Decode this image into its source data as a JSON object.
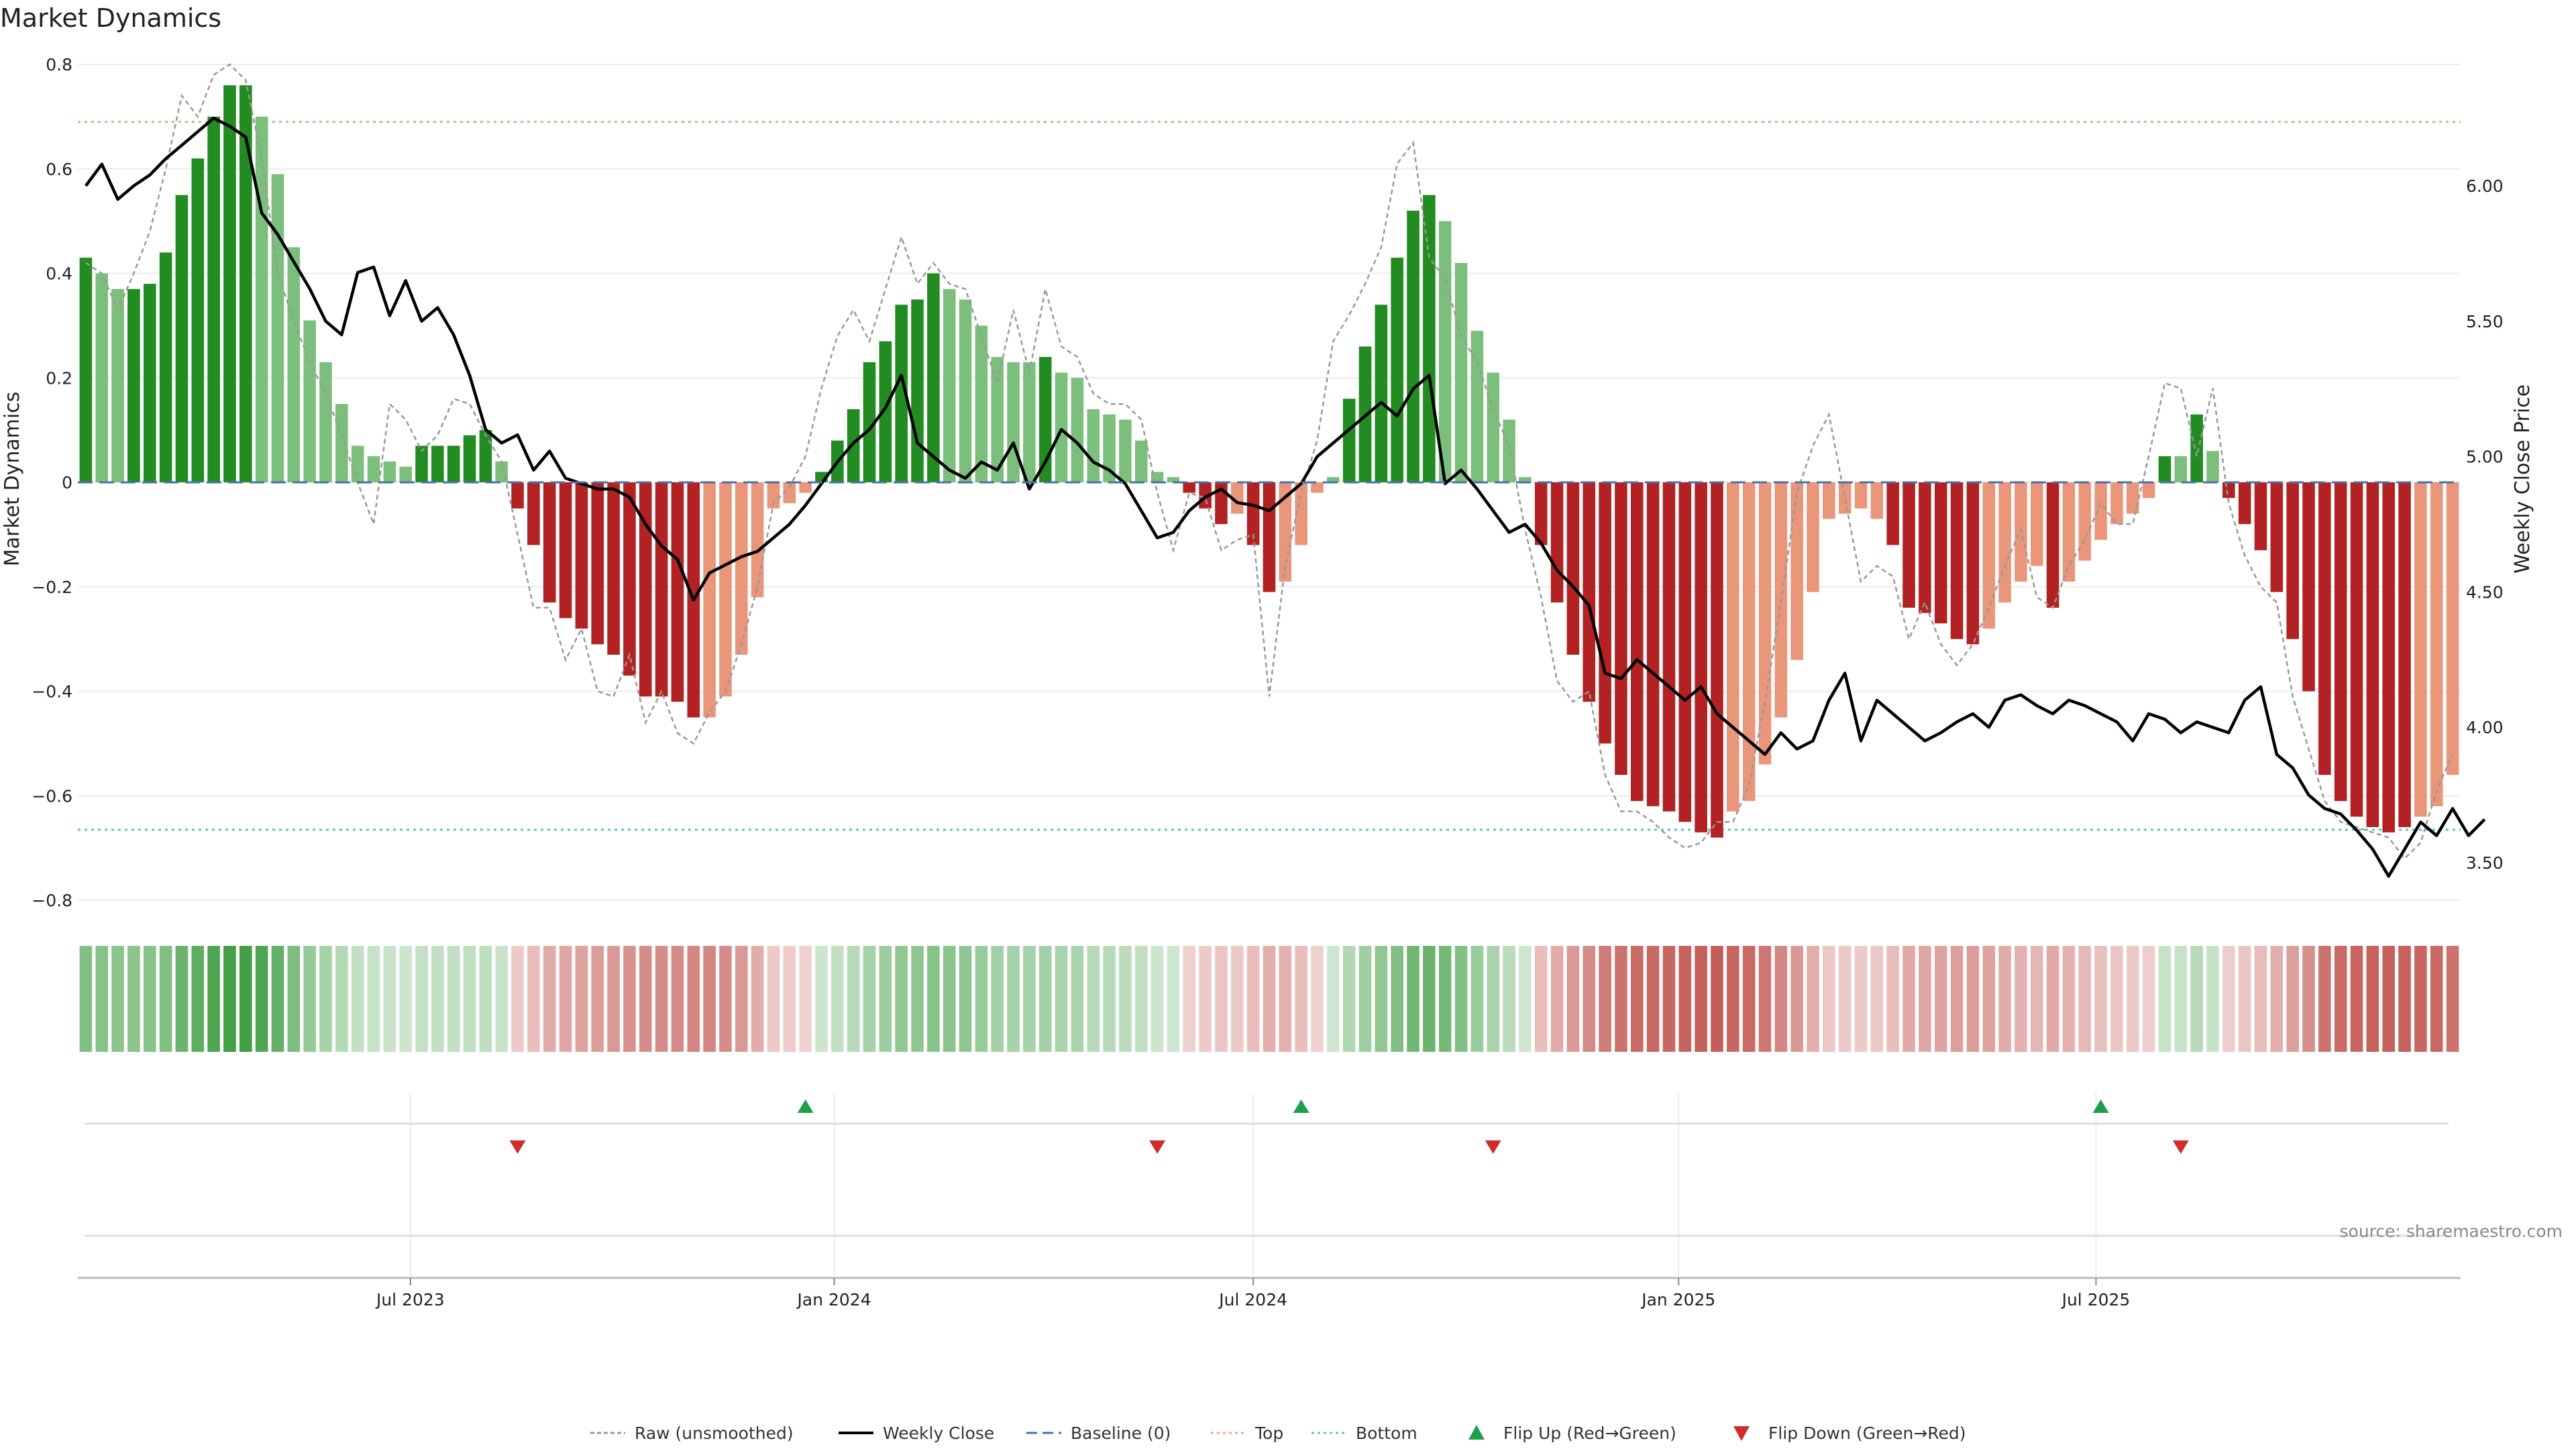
{
  "chart_data": {
    "type": "bar",
    "title": "Market Dynamics",
    "ylabel": "Market Dynamics",
    "y2label": "Weekly Close Price",
    "ylim": [
      -0.8,
      0.8
    ],
    "y2lim": [
      3.42,
      6.4
    ],
    "yticks": [
      "0.8",
      "0.6",
      "0.4",
      "0.2",
      "0",
      "−0.2",
      "−0.4",
      "−0.6",
      "−0.8"
    ],
    "y2ticks": [
      "6.00",
      "5.50",
      "5.00",
      "4.50",
      "4.00",
      "3.50"
    ],
    "xticks": [
      "Jul 2023",
      "Jan 2024",
      "Jul 2024",
      "Jan 2025",
      "Jul 2025"
    ],
    "grid": true,
    "legend_position": "bottom",
    "source": "source: sharemaestro.com",
    "top_line": 0.69,
    "bottom_line": -0.665,
    "baseline": 0,
    "colors": {
      "strong_green": "#228b22",
      "light_green": "#7cbf7c",
      "strong_red": "#b22222",
      "light_red": "#e9967a",
      "close": "#000000",
      "raw": "#999999",
      "baseline": "#4a6fa5",
      "top": "#e8a98a",
      "bottom": "#5ec4c4",
      "flip_up": "#1e9e4a",
      "flip_down": "#d22b2b"
    },
    "bars": [
      0.43,
      0.4,
      0.37,
      0.37,
      0.38,
      0.44,
      0.55,
      0.62,
      0.7,
      0.76,
      0.76,
      0.7,
      0.59,
      0.45,
      0.31,
      0.23,
      0.15,
      0.07,
      0.05,
      0.04,
      0.03,
      0.07,
      0.07,
      0.07,
      0.09,
      0.1,
      0.04,
      -0.05,
      -0.12,
      -0.23,
      -0.26,
      -0.28,
      -0.31,
      -0.33,
      -0.37,
      -0.41,
      -0.41,
      -0.42,
      -0.45,
      -0.45,
      -0.41,
      -0.33,
      -0.22,
      -0.05,
      -0.04,
      -0.02,
      0.02,
      0.08,
      0.14,
      0.23,
      0.27,
      0.34,
      0.35,
      0.4,
      0.37,
      0.35,
      0.3,
      0.24,
      0.23,
      0.23,
      0.24,
      0.21,
      0.2,
      0.14,
      0.13,
      0.12,
      0.08,
      0.02,
      0.01,
      -0.02,
      -0.05,
      -0.08,
      -0.06,
      -0.12,
      -0.21,
      -0.19,
      -0.12,
      -0.02,
      0.01,
      0.16,
      0.26,
      0.34,
      0.43,
      0.52,
      0.55,
      0.5,
      0.42,
      0.29,
      0.21,
      0.12,
      0.01,
      -0.12,
      -0.23,
      -0.33,
      -0.42,
      -0.5,
      -0.56,
      -0.61,
      -0.62,
      -0.63,
      -0.65,
      -0.67,
      -0.68,
      -0.63,
      -0.61,
      -0.54,
      -0.45,
      -0.34,
      -0.21,
      -0.07,
      -0.06,
      -0.05,
      -0.07,
      -0.12,
      -0.24,
      -0.25,
      -0.27,
      -0.3,
      -0.31,
      -0.28,
      -0.23,
      -0.19,
      -0.16,
      -0.24,
      -0.19,
      -0.15,
      -0.11,
      -0.08,
      -0.06,
      -0.03,
      0.05,
      0.05,
      0.13,
      0.06,
      -0.03,
      -0.08,
      -0.13,
      -0.21,
      -0.3,
      -0.4,
      -0.56,
      -0.61,
      -0.64,
      -0.66,
      -0.67,
      -0.66,
      -0.64,
      -0.62,
      -0.56
    ],
    "bar_shade": [
      "s",
      "l",
      "l",
      "s",
      "s",
      "s",
      "s",
      "s",
      "s",
      "s",
      "s",
      "l",
      "l",
      "l",
      "l",
      "l",
      "l",
      "l",
      "l",
      "l",
      "l",
      "s",
      "s",
      "s",
      "s",
      "s",
      "l",
      "s",
      "s",
      "s",
      "s",
      "s",
      "s",
      "s",
      "s",
      "s",
      "s",
      "s",
      "s",
      "l",
      "l",
      "l",
      "l",
      "l",
      "l",
      "l",
      "s",
      "s",
      "s",
      "s",
      "s",
      "s",
      "s",
      "s",
      "l",
      "l",
      "l",
      "l",
      "l",
      "l",
      "s",
      "l",
      "l",
      "l",
      "l",
      "l",
      "l",
      "l",
      "l",
      "s",
      "s",
      "s",
      "l",
      "s",
      "s",
      "l",
      "l",
      "l",
      "l",
      "s",
      "s",
      "s",
      "s",
      "s",
      "s",
      "l",
      "l",
      "l",
      "l",
      "l",
      "l",
      "s",
      "s",
      "s",
      "s",
      "s",
      "s",
      "s",
      "s",
      "s",
      "s",
      "s",
      "s",
      "l",
      "l",
      "l",
      "l",
      "l",
      "l",
      "l",
      "l",
      "l",
      "l",
      "s",
      "s",
      "s",
      "s",
      "s",
      "s",
      "l",
      "l",
      "l",
      "l",
      "s",
      "l",
      "l",
      "l",
      "l",
      "l",
      "l",
      "s",
      "l",
      "s",
      "l",
      "s",
      "s",
      "s",
      "s",
      "s",
      "s",
      "s",
      "s",
      "s",
      "s",
      "s",
      "s",
      "l",
      "l",
      "l"
    ],
    "raw": [
      0.42,
      0.4,
      0.33,
      0.4,
      0.48,
      0.6,
      0.74,
      0.7,
      0.78,
      0.8,
      0.77,
      0.62,
      0.4,
      0.31,
      0.23,
      0.17,
      0.09,
      0.0,
      -0.08,
      0.15,
      0.12,
      0.06,
      0.09,
      0.16,
      0.15,
      0.09,
      0.04,
      -0.1,
      -0.24,
      -0.24,
      -0.34,
      -0.28,
      -0.4,
      -0.41,
      -0.33,
      -0.46,
      -0.4,
      -0.48,
      -0.5,
      -0.44,
      -0.4,
      -0.31,
      -0.2,
      -0.04,
      -0.01,
      0.05,
      0.18,
      0.28,
      0.33,
      0.27,
      0.37,
      0.47,
      0.38,
      0.42,
      0.38,
      0.37,
      0.28,
      0.19,
      0.33,
      0.21,
      0.37,
      0.26,
      0.24,
      0.17,
      0.15,
      0.15,
      0.12,
      -0.02,
      -0.13,
      -0.02,
      -0.03,
      -0.13,
      -0.11,
      -0.1,
      -0.41,
      -0.16,
      -0.02,
      0.08,
      0.27,
      0.32,
      0.38,
      0.45,
      0.61,
      0.65,
      0.43,
      0.39,
      0.28,
      0.23,
      0.14,
      0.07,
      -0.09,
      -0.22,
      -0.38,
      -0.42,
      -0.4,
      -0.56,
      -0.63,
      -0.63,
      -0.65,
      -0.68,
      -0.7,
      -0.69,
      -0.65,
      -0.65,
      -0.58,
      -0.42,
      -0.23,
      -0.02,
      0.07,
      0.13,
      -0.03,
      -0.19,
      -0.16,
      -0.18,
      -0.3,
      -0.23,
      -0.31,
      -0.35,
      -0.31,
      -0.24,
      -0.16,
      -0.09,
      -0.22,
      -0.24,
      -0.16,
      -0.11,
      -0.04,
      -0.08,
      -0.08,
      0.05,
      0.19,
      0.18,
      0.05,
      0.18,
      -0.04,
      -0.14,
      -0.2,
      -0.23,
      -0.41,
      -0.51,
      -0.61,
      -0.65,
      -0.66,
      -0.67,
      -0.68,
      -0.72,
      -0.69,
      -0.59,
      -0.52
    ],
    "close": [
      6.0,
      6.08,
      5.95,
      6.0,
      6.04,
      6.1,
      6.15,
      6.2,
      6.25,
      6.22,
      6.18,
      5.9,
      5.82,
      5.72,
      5.62,
      5.5,
      5.45,
      5.68,
      5.7,
      5.52,
      5.65,
      5.5,
      5.55,
      5.45,
      5.3,
      5.1,
      5.05,
      5.08,
      4.95,
      5.02,
      4.92,
      4.9,
      4.88,
      4.88,
      4.85,
      4.75,
      4.67,
      4.62,
      4.47,
      4.57,
      4.6,
      4.63,
      4.65,
      4.7,
      4.75,
      4.82,
      4.9,
      4.98,
      5.05,
      5.1,
      5.18,
      5.3,
      5.05,
      5.0,
      4.95,
      4.92,
      4.98,
      4.95,
      5.05,
      4.88,
      4.98,
      5.1,
      5.05,
      4.98,
      4.95,
      4.9,
      4.8,
      4.7,
      4.72,
      4.8,
      4.85,
      4.88,
      4.83,
      4.82,
      4.8,
      4.85,
      4.9,
      5.0,
      5.05,
      5.1,
      5.15,
      5.2,
      5.15,
      5.25,
      5.3,
      4.9,
      4.95,
      4.88,
      4.8,
      4.72,
      4.75,
      4.68,
      4.58,
      4.52,
      4.45,
      4.2,
      4.18,
      4.25,
      4.2,
      4.15,
      4.1,
      4.15,
      4.05,
      4.0,
      3.95,
      3.9,
      3.98,
      3.92,
      3.95,
      4.1,
      4.2,
      3.95,
      4.1,
      4.05,
      4.0,
      3.95,
      3.98,
      4.02,
      4.05,
      4.0,
      4.1,
      4.12,
      4.08,
      4.05,
      4.1,
      4.08,
      4.05,
      4.02,
      3.95,
      4.05,
      4.03,
      3.98,
      4.02,
      4.0,
      3.98,
      4.1,
      4.15,
      3.9,
      3.85,
      3.75,
      3.7,
      3.68,
      3.62,
      3.55,
      3.45,
      3.55,
      3.65,
      3.6,
      3.7,
      3.6,
      3.66
    ],
    "flip_up_idx": [
      45,
      76,
      126
    ],
    "flip_down_idx": [
      27,
      67,
      88,
      131
    ],
    "xtick_positions": [
      20.3,
      46.8,
      73.0,
      99.6,
      125.7
    ],
    "strength_min": 0.0,
    "strength_max": 0.76
  },
  "legend": [
    {
      "label": "Raw (unsmoothed)",
      "kind": "raw"
    },
    {
      "label": "Weekly Close",
      "kind": "close"
    },
    {
      "label": "Baseline (0)",
      "kind": "baseline"
    },
    {
      "label": "Top",
      "kind": "top"
    },
    {
      "label": "Bottom",
      "kind": "bottom"
    },
    {
      "label": "Flip Up (Red→Green)",
      "kind": "flip_up"
    },
    {
      "label": "Flip Down (Green→Red)",
      "kind": "flip_down"
    }
  ]
}
